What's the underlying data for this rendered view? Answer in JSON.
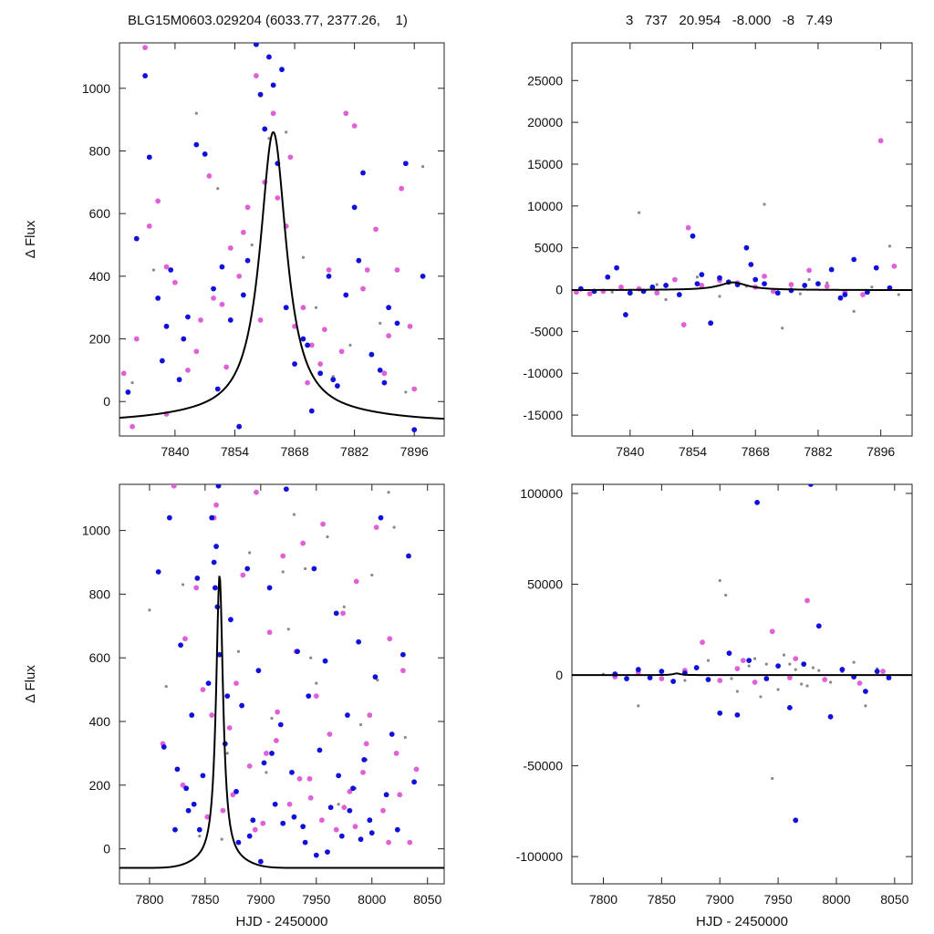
{
  "header": {
    "left": "BLG15M0603.029204 (6033.77, 2377.26,    1)",
    "right": "3   737   20.954   -8.000   -8   7.49"
  },
  "colors": {
    "series_blue": "#1010dd",
    "series_magenta": "#e060d8",
    "series_gray": "#8a8a8a",
    "model_curve": "#000000"
  },
  "chart_data": [
    {
      "panel": "top-left",
      "type": "scatter",
      "title": "",
      "xlabel": "",
      "ylabel": "Δ Flux",
      "xlim": [
        7827,
        7903
      ],
      "ylim": [
        -110,
        1145
      ],
      "xticks": [
        7840,
        7854,
        7868,
        7882,
        7896
      ],
      "yticks": [
        0,
        200,
        400,
        600,
        800,
        1000
      ],
      "model": {
        "t0": 7863,
        "peak": 860,
        "sigma": 3.6
      },
      "series": [
        {
          "color_key": "series_gray",
          "x": [
            7845,
            7850,
            7858,
            7866,
            7873,
            7877,
            7881,
            7888,
            7894,
            7898,
            7835,
            7830,
            7870,
            7862
          ],
          "y": [
            920,
            680,
            500,
            860,
            300,
            80,
            180,
            250,
            30,
            750,
            420,
            60,
            460,
            840
          ]
        },
        {
          "color_key": "series_magenta",
          "x": [
            7828,
            7831,
            7833,
            7836,
            7838,
            7840,
            7843,
            7846,
            7848,
            7851,
            7853,
            7855,
            7857,
            7859,
            7861,
            7863,
            7864,
            7866,
            7868,
            7870,
            7872,
            7874,
            7876,
            7879,
            7882,
            7884,
            7887,
            7890,
            7893,
            7896,
            7838,
            7845,
            7849,
            7852,
            7856,
            7860,
            7867,
            7871,
            7875,
            7880,
            7885,
            7889,
            7892,
            7895,
            7830,
            7834
          ],
          "y": [
            90,
            200,
            1130,
            640,
            430,
            380,
            100,
            260,
            720,
            310,
            490,
            400,
            620,
            1040,
            700,
            920,
            650,
            560,
            240,
            300,
            180,
            120,
            420,
            160,
            880,
            360,
            550,
            210,
            680,
            40,
            -40,
            160,
            330,
            110,
            540,
            260,
            780,
            60,
            230,
            920,
            420,
            90,
            420,
            240,
            -80,
            560
          ]
        },
        {
          "color_key": "series_blue",
          "x": [
            7829,
            7831,
            7833,
            7834,
            7836,
            7838,
            7839,
            7841,
            7843,
            7845,
            7847,
            7849,
            7851,
            7853,
            7855,
            7857,
            7859,
            7860,
            7861,
            7862,
            7863,
            7864,
            7866,
            7868,
            7870,
            7872,
            7874,
            7876,
            7878,
            7880,
            7882,
            7884,
            7886,
            7888,
            7890,
            7892,
            7894,
            7896,
            7898,
            7837,
            7842,
            7850,
            7856,
            7865,
            7871,
            7877,
            7883,
            7889
          ],
          "y": [
            30,
            520,
            1040,
            780,
            330,
            240,
            420,
            70,
            270,
            820,
            790,
            360,
            430,
            260,
            -80,
            450,
            1140,
            980,
            870,
            1100,
            1010,
            760,
            300,
            120,
            200,
            -30,
            90,
            400,
            50,
            340,
            620,
            730,
            150,
            100,
            300,
            250,
            760,
            -90,
            400,
            130,
            200,
            40,
            340,
            1060,
            180,
            70,
            450,
            60
          ]
        }
      ]
    },
    {
      "panel": "top-right",
      "type": "scatter",
      "title": "",
      "xlabel": "",
      "ylabel": "",
      "xlim": [
        7827,
        7903
      ],
      "ylim": [
        -17500,
        29500
      ],
      "xticks": [
        7840,
        7854,
        7868,
        7882,
        7896
      ],
      "yticks": [
        -15000,
        -10000,
        -5000,
        0,
        5000,
        10000,
        15000,
        20000,
        25000
      ],
      "model": {
        "t0": 7863,
        "peak": 860,
        "sigma": 3.6
      },
      "series": [
        {
          "color_key": "series_gray",
          "x": [
            7836,
            7842,
            7846,
            7855,
            7860,
            7866,
            7870,
            7874,
            7878,
            7884,
            7890,
            7894,
            7898,
            7900,
            7848,
            7880
          ],
          "y": [
            -300,
            9200,
            600,
            1500,
            -800,
            400,
            10200,
            -4600,
            -500,
            800,
            -2600,
            300,
            5200,
            -600,
            -1200,
            1200
          ]
        },
        {
          "color_key": "series_magenta",
          "x": [
            7828,
            7831,
            7834,
            7838,
            7842,
            7846,
            7850,
            7853,
            7856,
            7860,
            7864,
            7868,
            7872,
            7876,
            7880,
            7884,
            7888,
            7892,
            7896,
            7899,
            7852,
            7870
          ],
          "y": [
            -300,
            -500,
            -200,
            300,
            100,
            -400,
            1200,
            7400,
            500,
            1100,
            800,
            300,
            -200,
            600,
            2300,
            400,
            -300,
            -600,
            17800,
            2800,
            -4200,
            1600
          ]
        },
        {
          "color_key": "series_blue",
          "x": [
            7829,
            7832,
            7835,
            7837,
            7840,
            7843,
            7845,
            7848,
            7851,
            7854,
            7856,
            7858,
            7860,
            7862,
            7864,
            7866,
            7868,
            7870,
            7873,
            7876,
            7879,
            7882,
            7885,
            7888,
            7890,
            7893,
            7895,
            7898,
            7839,
            7855,
            7867,
            7887
          ],
          "y": [
            100,
            -200,
            1500,
            2600,
            -400,
            -200,
            300,
            500,
            -600,
            6400,
            1800,
            -4000,
            1400,
            900,
            600,
            5000,
            1200,
            700,
            -400,
            -100,
            500,
            700,
            2400,
            -600,
            3600,
            -300,
            2600,
            200,
            -3000,
            700,
            3000,
            -1000
          ]
        }
      ]
    },
    {
      "panel": "bottom-left",
      "type": "scatter",
      "title": "",
      "xlabel": "HJD - 2450000",
      "ylabel": "Δ Flux",
      "xlim": [
        7773,
        8065
      ],
      "ylim": [
        -110,
        1145
      ],
      "xticks": [
        7800,
        7850,
        7900,
        7950,
        8000,
        8050
      ],
      "yticks": [
        0,
        200,
        400,
        600,
        800,
        1000
      ],
      "model": {
        "t0": 7863,
        "peak": 860,
        "sigma": 3.6
      },
      "series": [
        {
          "color_key": "series_gray",
          "x": [
            7800,
            7815,
            7830,
            7845,
            7880,
            7890,
            7905,
            7920,
            7930,
            7945,
            7960,
            7975,
            7985,
            7995,
            8005,
            8015,
            8030,
            7910,
            7940,
            7955,
            7970,
            8000,
            7870,
            7925,
            7950,
            7990,
            8020,
            7865
          ],
          "y": [
            750,
            510,
            830,
            40,
            620,
            930,
            240,
            870,
            1050,
            600,
            980,
            760,
            190,
            280,
            530,
            1120,
            350,
            410,
            880,
            1020,
            140,
            860,
            300,
            690,
            520,
            390,
            1010,
            30
          ]
        },
        {
          "color_key": "series_magenta",
          "x": [
            7812,
            7822,
            7832,
            7842,
            7852,
            7856,
            7858,
            7860,
            7866,
            7872,
            7878,
            7884,
            7890,
            7896,
            7902,
            7908,
            7914,
            7920,
            7926,
            7932,
            7938,
            7944,
            7950,
            7956,
            7962,
            7968,
            7974,
            7980,
            7986,
            7992,
            7998,
            8004,
            8010,
            8016,
            8022,
            8028,
            8034,
            8040,
            7830,
            7848,
            7875,
            7895,
            7915,
            7935,
            7955,
            7975,
            7995,
            8015,
            7905,
            7945,
            7985,
            8025
          ],
          "y": [
            330,
            1140,
            660,
            820,
            100,
            420,
            1040,
            1080,
            120,
            380,
            520,
            860,
            260,
            1120,
            80,
            680,
            340,
            920,
            140,
            620,
            960,
            220,
            480,
            1020,
            360,
            60,
            740,
            180,
            840,
            240,
            420,
            1010,
            120,
            660,
            300,
            560,
            20,
            250,
            200,
            500,
            170,
            60,
            430,
            220,
            90,
            130,
            330,
            20,
            300,
            160,
            70,
            170
          ]
        },
        {
          "color_key": "series_blue",
          "x": [
            7808,
            7813,
            7818,
            7823,
            7828,
            7833,
            7838,
            7843,
            7848,
            7853,
            7856,
            7858,
            7859,
            7860,
            7861,
            7862,
            7863,
            7868,
            7873,
            7878,
            7883,
            7888,
            7893,
            7898,
            7903,
            7908,
            7913,
            7918,
            7923,
            7928,
            7933,
            7938,
            7943,
            7948,
            7953,
            7958,
            7963,
            7968,
            7973,
            7978,
            7983,
            7988,
            7993,
            7998,
            8003,
            8008,
            8013,
            8018,
            8023,
            8028,
            8033,
            8038,
            7825,
            7835,
            7845,
            7880,
            7900,
            7920,
            7940,
            7960,
            7980,
            8000,
            7890,
            7910,
            7930,
            7950,
            7970,
            7990,
            7840,
            7870
          ],
          "y": [
            870,
            320,
            1040,
            60,
            640,
            190,
            420,
            850,
            230,
            520,
            1040,
            900,
            820,
            950,
            760,
            1140,
            610,
            330,
            720,
            180,
            450,
            880,
            90,
            560,
            270,
            820,
            140,
            390,
            1130,
            240,
            620,
            70,
            480,
            880,
            310,
            590,
            130,
            740,
            40,
            420,
            190,
            650,
            280,
            90,
            540,
            1040,
            170,
            360,
            60,
            610,
            920,
            210,
            250,
            120,
            60,
            20,
            -40,
            80,
            20,
            -10,
            120,
            50,
            40,
            300,
            100,
            -20,
            230,
            30,
            140,
            480
          ]
        }
      ]
    },
    {
      "panel": "bottom-right",
      "type": "scatter",
      "title": "",
      "xlabel": "HJD - 2450000",
      "ylabel": "",
      "xlim": [
        7773,
        8065
      ],
      "ylim": [
        -115000,
        105000
      ],
      "xticks": [
        7800,
        7850,
        7900,
        7950,
        8000,
        8050
      ],
      "yticks": [
        -100000,
        -50000,
        0,
        50000,
        100000
      ],
      "model": {
        "t0": 7863,
        "peak": 860,
        "sigma": 3.6
      },
      "series": [
        {
          "color_key": "series_gray",
          "x": [
            7800,
            7820,
            7830,
            7850,
            7870,
            7890,
            7900,
            7905,
            7915,
            7925,
            7935,
            7940,
            7945,
            7955,
            7965,
            7975,
            7985,
            7995,
            8005,
            8015,
            8025,
            8035,
            7910,
            7930,
            7950,
            7960,
            7970,
            7980
          ],
          "y": [
            400,
            -1500,
            -17000,
            2000,
            -3000,
            8000,
            52000,
            44000,
            -9000,
            5000,
            -12000,
            6000,
            -57000,
            11000,
            3000,
            -6000,
            2500,
            -4000,
            1800,
            7000,
            -17000,
            3500,
            -2000,
            9000,
            -8000,
            6000,
            -5000,
            4000
          ]
        },
        {
          "color_key": "series_magenta",
          "x": [
            7810,
            7830,
            7850,
            7870,
            7885,
            7900,
            7915,
            7930,
            7945,
            7960,
            7975,
            7990,
            8005,
            8020,
            8040,
            7920,
            7965
          ],
          "y": [
            -1000,
            1500,
            -2000,
            2500,
            18000,
            -3000,
            3500,
            -4000,
            24000,
            -1500,
            41000,
            -2500,
            3000,
            -4500,
            2000,
            8000,
            9000
          ]
        },
        {
          "color_key": "series_blue",
          "x": [
            7810,
            7820,
            7830,
            7840,
            7850,
            7860,
            7870,
            7880,
            7890,
            7900,
            7908,
            7915,
            7925,
            7932,
            7940,
            7950,
            7960,
            7965,
            7972,
            7978,
            7985,
            7995,
            8005,
            8015,
            8025,
            8035,
            8045
          ],
          "y": [
            500,
            -2000,
            3000,
            -1500,
            2000,
            -3500,
            1000,
            4000,
            -2500,
            -21000,
            12000,
            -22000,
            8000,
            95000,
            -2000,
            5000,
            -18000,
            -80000,
            6000,
            105000,
            27000,
            -23000,
            3000,
            -1000,
            -9000,
            2000,
            -1500
          ]
        }
      ]
    }
  ]
}
